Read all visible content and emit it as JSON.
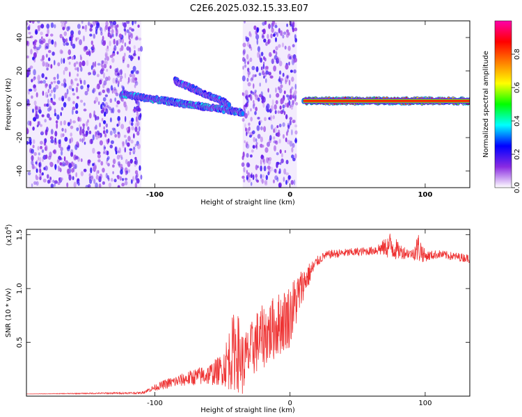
{
  "title": "C2E6.2025.032.15.33.E07",
  "colors": {
    "background": "#ffffff",
    "snr_line": "#ee3333",
    "axis": "#000000"
  },
  "chart_data": [
    {
      "type": "heatmap",
      "xlabel": "Height of straight line (km)",
      "ylabel": "Frequency (Hz)",
      "xlim": [
        -195,
        133
      ],
      "ylim": [
        -50,
        50
      ],
      "x_ticks": [
        -100,
        0,
        100
      ],
      "y_ticks": [
        -40,
        -20,
        0,
        20,
        40
      ],
      "colorbar": {
        "label": "Normalized spectral amplitude",
        "range": [
          0,
          1
        ],
        "ticks": [
          "0.0",
          "0.2",
          "0.4",
          "0.6",
          "0.8"
        ],
        "colormap": [
          "#ffffff",
          "#8a2be2",
          "#0000ff",
          "#00ffff",
          "#00ff00",
          "#ffff00",
          "#ff8000",
          "#ff0000",
          "#ff00aa"
        ]
      },
      "noise_regions": [
        {
          "x_range": [
            -195,
            -110
          ],
          "f_range": [
            -50,
            50
          ],
          "density": "high"
        },
        {
          "x_range": [
            -35,
            5
          ],
          "f_range": [
            -50,
            50
          ],
          "density": "high"
        }
      ],
      "bands": [
        {
          "x_range": [
            -125,
            -35
          ],
          "f_center_start": 6,
          "f_center_end": -5,
          "amplitude": 0.35
        },
        {
          "x_range": [
            -85,
            -45
          ],
          "f_center_start": 14,
          "f_center_end": 0,
          "amplitude": 0.3
        },
        {
          "x_range": [
            10,
            133
          ],
          "f_center_start": 2,
          "f_center_end": 2,
          "amplitude": 0.85
        }
      ]
    },
    {
      "type": "line",
      "xlabel": "Height of straight line (km)",
      "ylabel": "SNR (10 * v/v)",
      "y_multiplier": "(x10",
      "y_multiplier_exp": "4",
      "xlim": [
        -195,
        133
      ],
      "ylim": [
        0,
        1.55
      ],
      "x_ticks": [
        -100,
        0,
        100
      ],
      "y_ticks": [
        0.5,
        1.0,
        1.5
      ],
      "series": [
        {
          "x": [
            -195,
            -110,
            -100,
            -90,
            -80,
            -70,
            -60,
            -50,
            -45,
            -40,
            -35,
            -30,
            -25,
            -20,
            -15,
            -10,
            -5,
            0,
            5,
            10,
            15,
            20,
            25,
            30,
            40,
            50,
            60,
            70,
            75,
            80,
            90,
            95,
            100,
            110,
            120,
            133
          ],
          "values": [
            0.02,
            0.03,
            0.08,
            0.12,
            0.15,
            0.18,
            0.2,
            0.25,
            0.35,
            0.45,
            0.3,
            0.4,
            0.5,
            0.55,
            0.6,
            0.65,
            0.7,
            0.75,
            0.9,
            1.05,
            1.15,
            1.25,
            1.3,
            1.32,
            1.33,
            1.34,
            1.35,
            1.38,
            1.4,
            1.35,
            1.32,
            1.38,
            1.3,
            1.32,
            1.3,
            1.28
          ],
          "noise": [
            0.0,
            0.01,
            0.03,
            0.05,
            0.06,
            0.08,
            0.1,
            0.15,
            0.3,
            0.4,
            0.3,
            0.25,
            0.3,
            0.3,
            0.3,
            0.3,
            0.3,
            0.3,
            0.25,
            0.15,
            0.1,
            0.05,
            0.04,
            0.04,
            0.04,
            0.04,
            0.04,
            0.08,
            0.15,
            0.08,
            0.04,
            0.15,
            0.05,
            0.04,
            0.04,
            0.04
          ]
        }
      ]
    }
  ]
}
